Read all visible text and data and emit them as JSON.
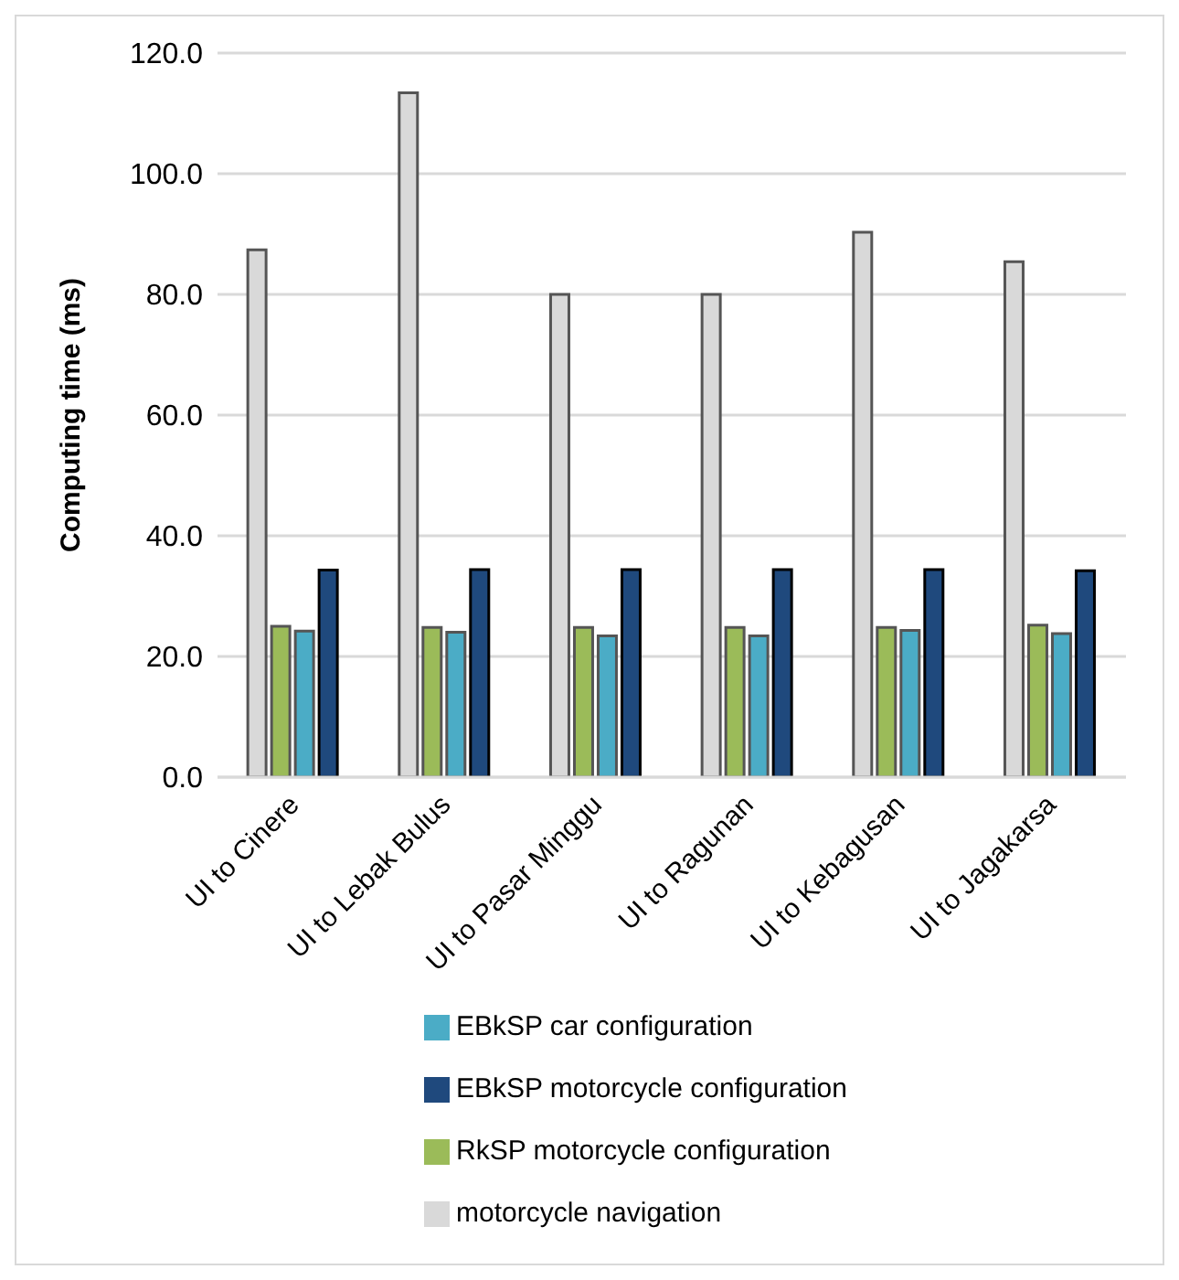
{
  "chart_data": {
    "type": "bar",
    "ylabel": "Computing time (ms)",
    "categories": [
      "UI to Cinere",
      "UI to Lebak Bulus",
      "UI to Pasar Minggu",
      "UI to Ragunan",
      "UI to Kebagusan",
      "UI to Jagakarsa"
    ],
    "series": [
      {
        "name": "motorcycle navigation",
        "color": "#d9d9d9",
        "values": [
          87.4,
          113.4,
          80.0,
          80.0,
          90.3,
          85.4
        ]
      },
      {
        "name": "RkSP motorcycle configuration",
        "color": "#9bbb59",
        "values": [
          25.0,
          24.8,
          24.8,
          24.8,
          24.8,
          25.2
        ]
      },
      {
        "name": "EBkSP car configuration",
        "color": "#4bacc6",
        "values": [
          24.2,
          24.0,
          23.4,
          23.4,
          24.3,
          23.8
        ]
      },
      {
        "name": "EBkSP motorcycle configuration",
        "color": "#1f497d",
        "values": [
          34.3,
          34.4,
          34.4,
          34.4,
          34.4,
          34.2
        ]
      }
    ],
    "ylim": [
      0,
      120
    ],
    "yticks": [
      {
        "value": 0,
        "label": "0.0"
      },
      {
        "value": 20,
        "label": "20.0"
      },
      {
        "value": 40,
        "label": "40.0"
      },
      {
        "value": 60,
        "label": "60.0"
      },
      {
        "value": 80,
        "label": "80.0"
      },
      {
        "value": 100,
        "label": "100.0"
      },
      {
        "value": 120,
        "label": "120.0"
      }
    ],
    "grid": "y",
    "legend": "bottom"
  }
}
